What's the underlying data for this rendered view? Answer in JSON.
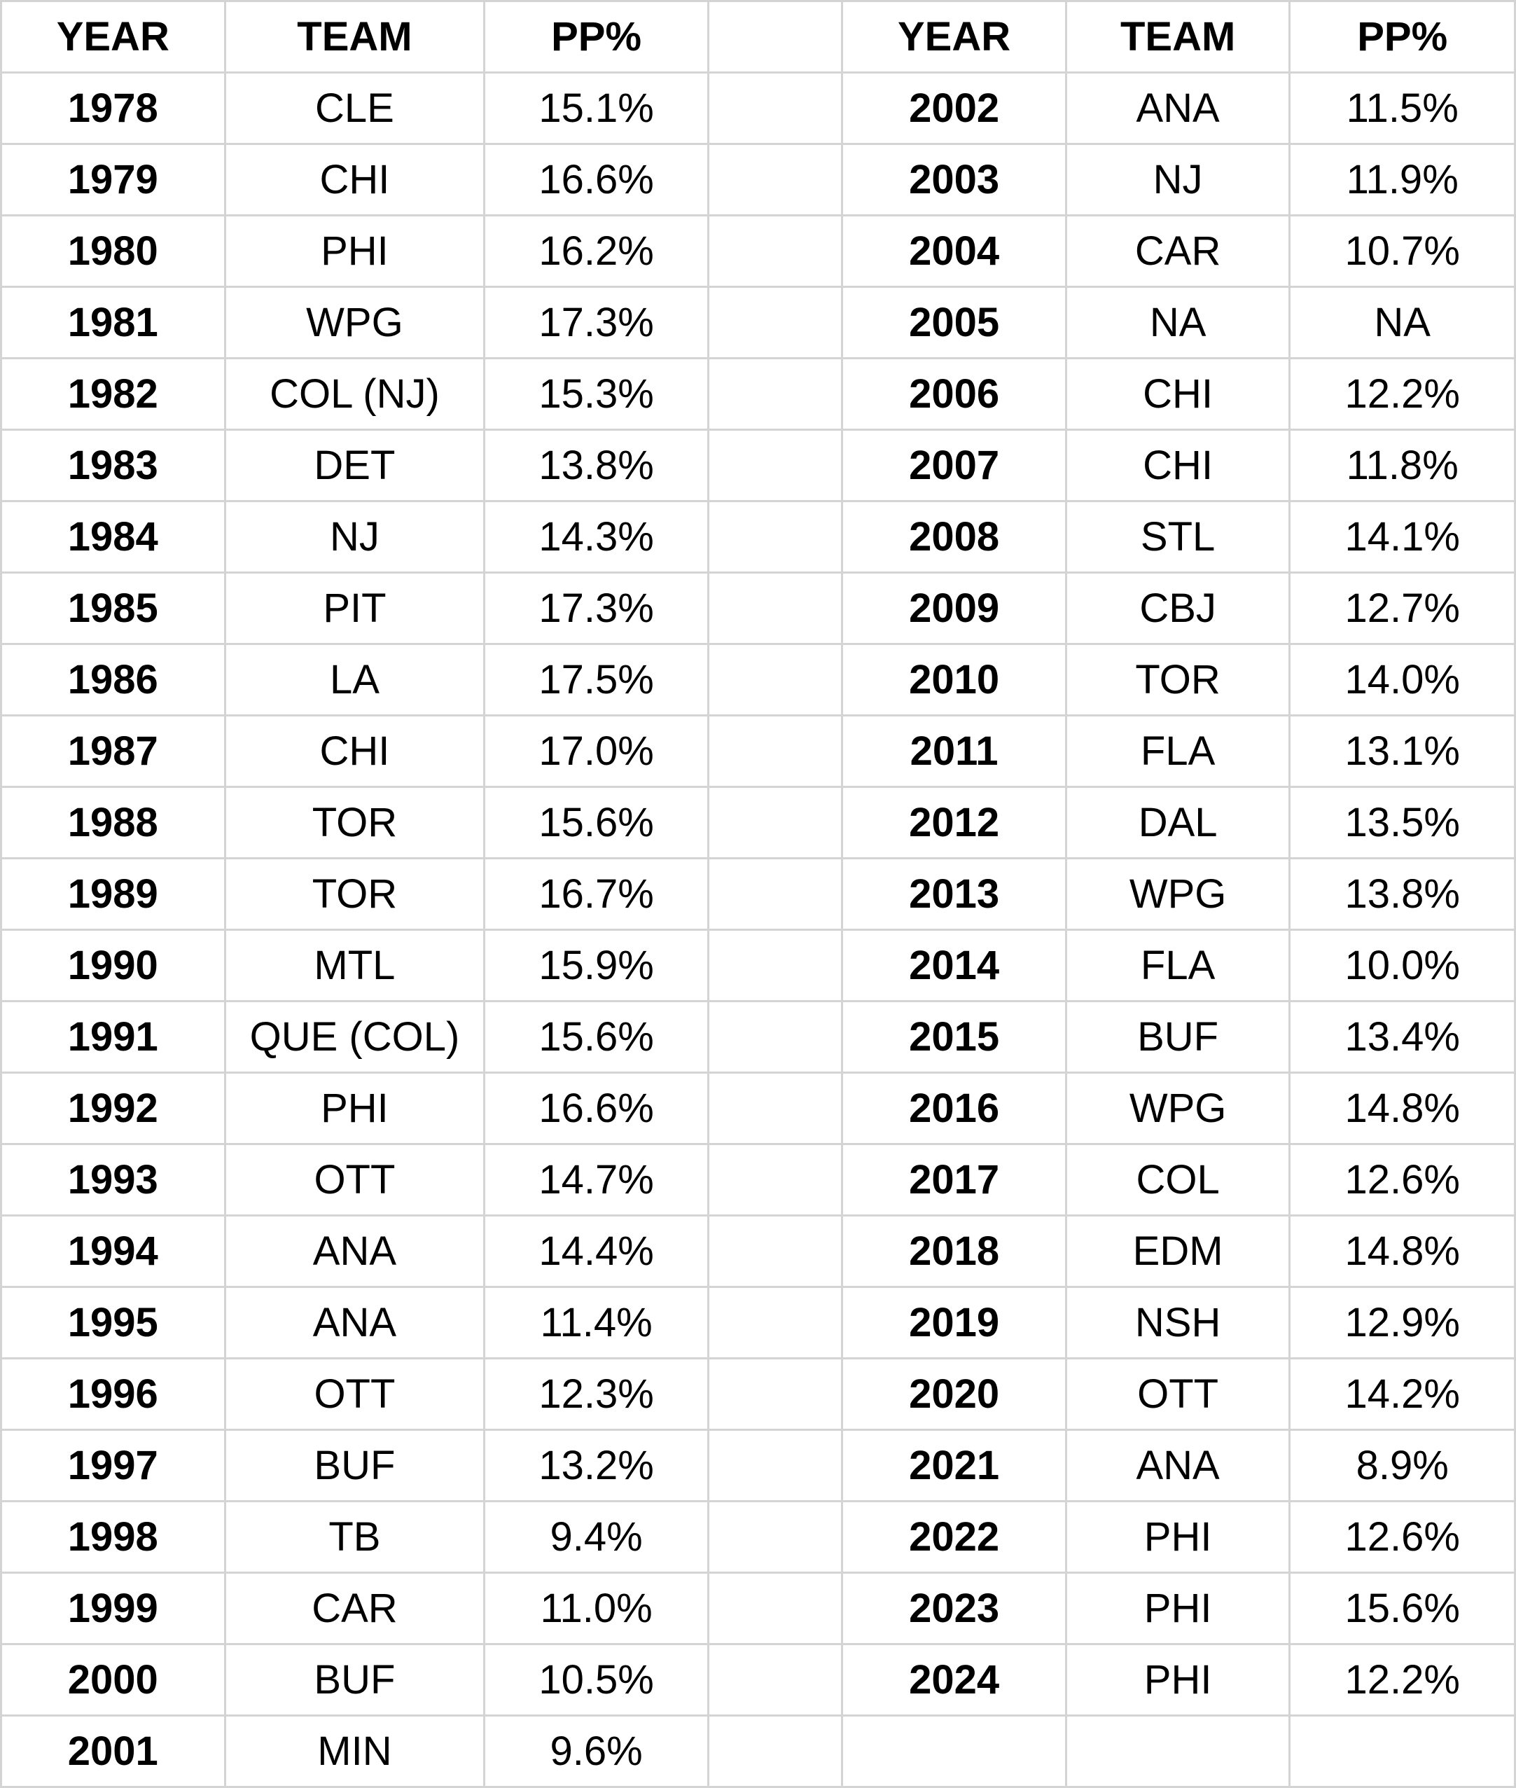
{
  "headers": {
    "left": [
      "YEAR",
      "TEAM",
      "PP%"
    ],
    "right": [
      "YEAR",
      "TEAM",
      "PP%"
    ]
  },
  "left_rows": [
    [
      "1978",
      "CLE",
      "15.1%"
    ],
    [
      "1979",
      "CHI",
      "16.6%"
    ],
    [
      "1980",
      "PHI",
      "16.2%"
    ],
    [
      "1981",
      "WPG",
      "17.3%"
    ],
    [
      "1982",
      "COL (NJ)",
      "15.3%"
    ],
    [
      "1983",
      "DET",
      "13.8%"
    ],
    [
      "1984",
      "NJ",
      "14.3%"
    ],
    [
      "1985",
      "PIT",
      "17.3%"
    ],
    [
      "1986",
      "LA",
      "17.5%"
    ],
    [
      "1987",
      "CHI",
      "17.0%"
    ],
    [
      "1988",
      "TOR",
      "15.6%"
    ],
    [
      "1989",
      "TOR",
      "16.7%"
    ],
    [
      "1990",
      "MTL",
      "15.9%"
    ],
    [
      "1991",
      "QUE (COL)",
      "15.6%"
    ],
    [
      "1992",
      "PHI",
      "16.6%"
    ],
    [
      "1993",
      "OTT",
      "14.7%"
    ],
    [
      "1994",
      "ANA",
      "14.4%"
    ],
    [
      "1995",
      "ANA",
      "11.4%"
    ],
    [
      "1996",
      "OTT",
      "12.3%"
    ],
    [
      "1997",
      "BUF",
      "13.2%"
    ],
    [
      "1998",
      "TB",
      "9.4%"
    ],
    [
      "1999",
      "CAR",
      "11.0%"
    ],
    [
      "2000",
      "BUF",
      "10.5%"
    ],
    [
      "2001",
      "MIN",
      "9.6%"
    ]
  ],
  "right_rows": [
    [
      "2002",
      "ANA",
      "11.5%"
    ],
    [
      "2003",
      "NJ",
      "11.9%"
    ],
    [
      "2004",
      "CAR",
      "10.7%"
    ],
    [
      "2005",
      "NA",
      "NA"
    ],
    [
      "2006",
      "CHI",
      "12.2%"
    ],
    [
      "2007",
      "CHI",
      "11.8%"
    ],
    [
      "2008",
      "STL",
      "14.1%"
    ],
    [
      "2009",
      "CBJ",
      "12.7%"
    ],
    [
      "2010",
      "TOR",
      "14.0%"
    ],
    [
      "2011",
      "FLA",
      "13.1%"
    ],
    [
      "2012",
      "DAL",
      "13.5%"
    ],
    [
      "2013",
      "WPG",
      "13.8%"
    ],
    [
      "2014",
      "FLA",
      "10.0%"
    ],
    [
      "2015",
      "BUF",
      "13.4%"
    ],
    [
      "2016",
      "WPG",
      "14.8%"
    ],
    [
      "2017",
      "COL",
      "12.6%"
    ],
    [
      "2018",
      "EDM",
      "14.8%"
    ],
    [
      "2019",
      "NSH",
      "12.9%"
    ],
    [
      "2020",
      "OTT",
      "14.2%"
    ],
    [
      "2021",
      "ANA",
      "8.9%"
    ],
    [
      "2022",
      "PHI",
      "12.6%"
    ],
    [
      "2023",
      "PHI",
      "15.6%"
    ],
    [
      "2024",
      "PHI",
      "12.2%"
    ]
  ]
}
